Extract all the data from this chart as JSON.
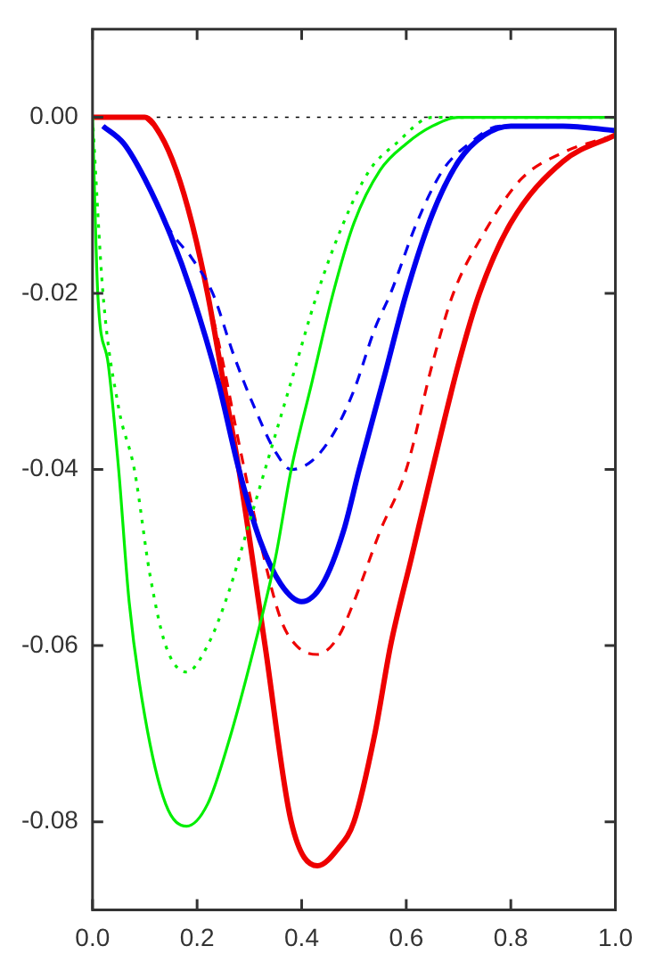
{
  "chart_data": {
    "type": "line",
    "xlim": [
      0,
      1.0
    ],
    "ylim": [
      -0.09,
      0.01
    ],
    "xticks": [
      {
        "value": 0,
        "label": "0.0"
      },
      0.2,
      0.4,
      0.6,
      0.8,
      {
        "value": 1,
        "label": "1.0"
      }
    ],
    "yticks": [
      {
        "value": 0,
        "label": "0.00"
      },
      {
        "value": -0.02,
        "label": "-0.02"
      },
      {
        "value": -0.04,
        "label": "-0.04"
      },
      {
        "value": -0.06,
        "label": "-0.06"
      },
      {
        "value": -0.08,
        "label": "-0.08"
      }
    ],
    "grid": false,
    "legend": false,
    "marker": "none",
    "ref_lines": [
      {
        "axis": "y",
        "value": 0,
        "color": "#000000",
        "line_style": "dotted"
      }
    ],
    "series": [
      {
        "color": "#00ee00",
        "line_style": "solid",
        "x": [
          0,
          0.01,
          0.03,
          0.05,
          0.07,
          0.1,
          0.14,
          0.18,
          0.22,
          0.26,
          0.31,
          0.35,
          0.38,
          0.42,
          0.46,
          0.5,
          0.55,
          0.6,
          0.65,
          0.7,
          0.8,
          0.9,
          1.0
        ],
        "values": [
          0,
          -0.02,
          -0.028,
          -0.04,
          -0.055,
          -0.068,
          -0.078,
          -0.0805,
          -0.078,
          -0.071,
          -0.06,
          -0.05,
          -0.04,
          -0.03,
          -0.02,
          -0.012,
          -0.006,
          -0.003,
          -0.001,
          0,
          0,
          0,
          0
        ]
      },
      {
        "color": "#00ee00",
        "line_style": "dotted",
        "x": [
          0,
          0.02,
          0.05,
          0.08,
          0.11,
          0.14,
          0.18,
          0.22,
          0.26,
          0.3,
          0.33,
          0.38,
          0.43,
          0.48,
          0.53,
          0.58,
          0.65,
          0.75,
          1.0
        ],
        "values": [
          0,
          -0.02,
          -0.033,
          -0.04,
          -0.052,
          -0.06,
          -0.063,
          -0.06,
          -0.054,
          -0.046,
          -0.04,
          -0.03,
          -0.02,
          -0.012,
          -0.006,
          -0.003,
          0,
          0,
          0
        ]
      },
      {
        "color": "#0000ee",
        "line_style": "solid",
        "x": [
          0.02,
          0.06,
          0.1,
          0.15,
          0.19,
          0.24,
          0.28,
          0.32,
          0.36,
          0.4,
          0.44,
          0.48,
          0.51,
          0.56,
          0.6,
          0.65,
          0.7,
          0.75,
          0.8,
          0.9,
          1.0
        ],
        "values": [
          -0.001,
          -0.003,
          -0.007,
          -0.0135,
          -0.02,
          -0.03,
          -0.04,
          -0.048,
          -0.053,
          -0.055,
          -0.053,
          -0.047,
          -0.04,
          -0.029,
          -0.02,
          -0.011,
          -0.005,
          -0.002,
          -0.001,
          -0.001,
          -0.0015
        ]
      },
      {
        "color": "#0000ee",
        "line_style": "dashed",
        "x": [
          0.02,
          0.06,
          0.1,
          0.15,
          0.19,
          0.23,
          0.27,
          0.31,
          0.35,
          0.38,
          0.42,
          0.46,
          0.5,
          0.54,
          0.57,
          0.62,
          0.67,
          0.72,
          0.78,
          0.9,
          1.0
        ],
        "values": [
          -0.001,
          -0.003,
          -0.007,
          -0.013,
          -0.016,
          -0.02,
          -0.027,
          -0.033,
          -0.038,
          -0.04,
          -0.039,
          -0.036,
          -0.031,
          -0.024,
          -0.02,
          -0.012,
          -0.006,
          -0.003,
          -0.001,
          -0.001,
          -0.0015
        ]
      },
      {
        "color": "#ee0000",
        "line_style": "solid",
        "x": [
          0,
          0.05,
          0.1,
          0.13,
          0.16,
          0.19,
          0.22,
          0.25,
          0.28,
          0.33,
          0.38,
          0.43,
          0.47,
          0.5,
          0.54,
          0.57,
          0.61,
          0.65,
          0.7,
          0.74,
          0.8,
          0.9,
          1.0
        ],
        "values": [
          0,
          0,
          0,
          -0.002,
          -0.006,
          -0.012,
          -0.02,
          -0.03,
          -0.04,
          -0.06,
          -0.08,
          -0.085,
          -0.083,
          -0.08,
          -0.07,
          -0.06,
          -0.05,
          -0.04,
          -0.028,
          -0.02,
          -0.012,
          -0.005,
          -0.002
        ]
      },
      {
        "color": "#ee0000",
        "line_style": "dashed",
        "x": [
          0.1,
          0.13,
          0.16,
          0.19,
          0.22,
          0.25,
          0.28,
          0.32,
          0.36,
          0.39,
          0.43,
          0.47,
          0.5,
          0.55,
          0.6,
          0.65,
          0.69,
          0.75,
          0.82,
          0.9,
          1.0
        ],
        "values": [
          0,
          -0.002,
          -0.006,
          -0.012,
          -0.02,
          -0.028,
          -0.037,
          -0.048,
          -0.057,
          -0.06,
          -0.061,
          -0.059,
          -0.055,
          -0.047,
          -0.04,
          -0.028,
          -0.02,
          -0.013,
          -0.007,
          -0.004,
          -0.002
        ]
      }
    ]
  }
}
